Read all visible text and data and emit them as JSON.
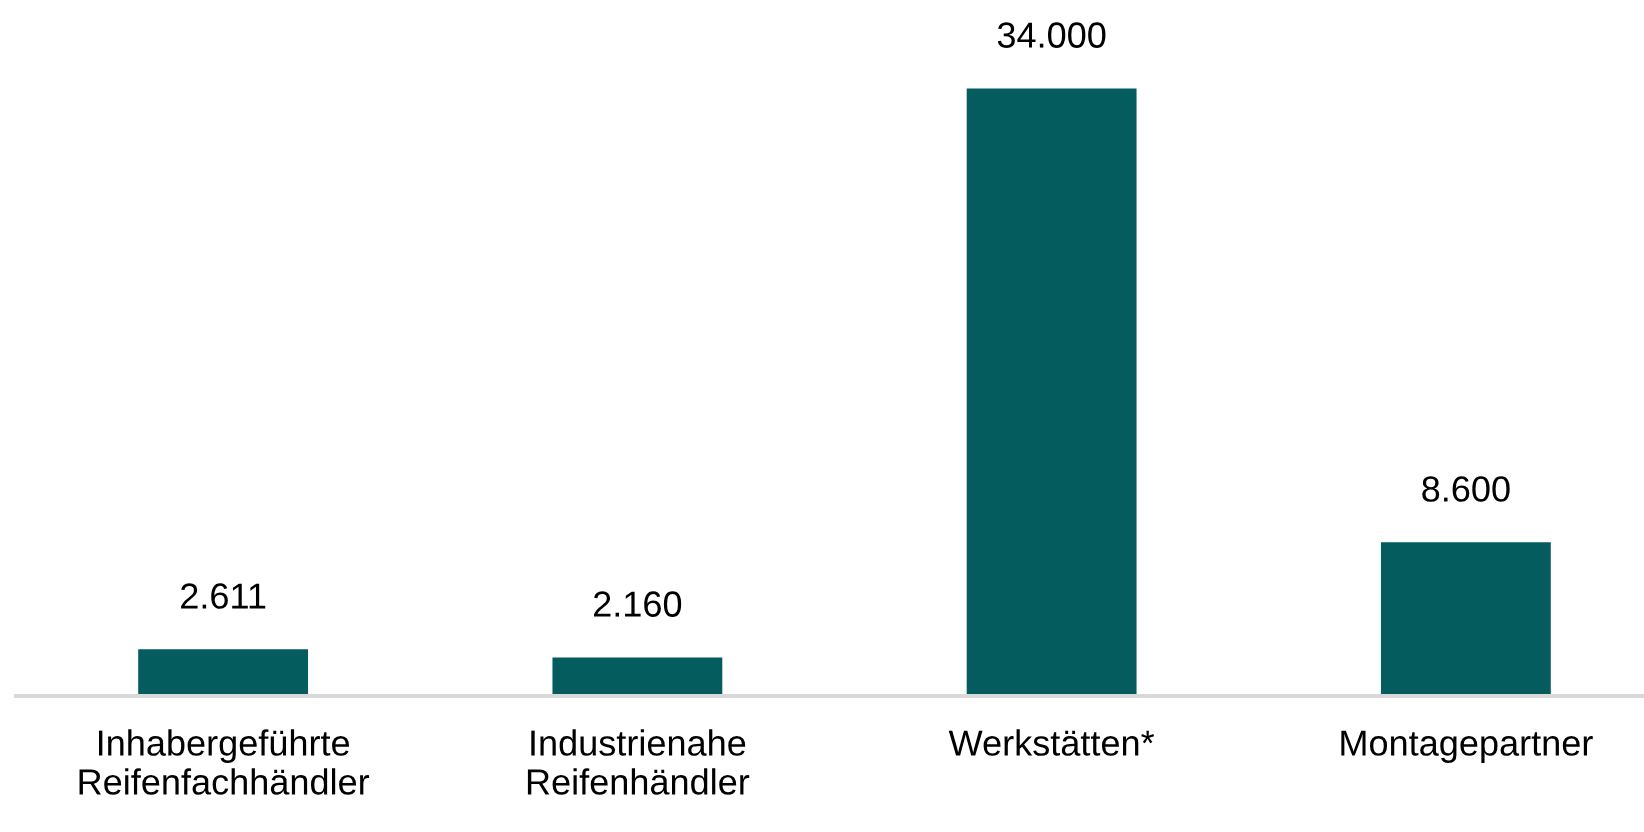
{
  "chart_data": {
    "type": "bar",
    "categories": [
      "Inhabergeführte\nReifenfachhändler",
      "Industrienahe\nReifenhändler",
      "Werkstätten*",
      "Montagepartner"
    ],
    "values": [
      2611,
      2160,
      34000,
      8600
    ],
    "value_labels": [
      "2.611",
      "2.160",
      "34.000",
      "8.600"
    ],
    "color": "#045c5e",
    "grid": false,
    "legend": false
  }
}
